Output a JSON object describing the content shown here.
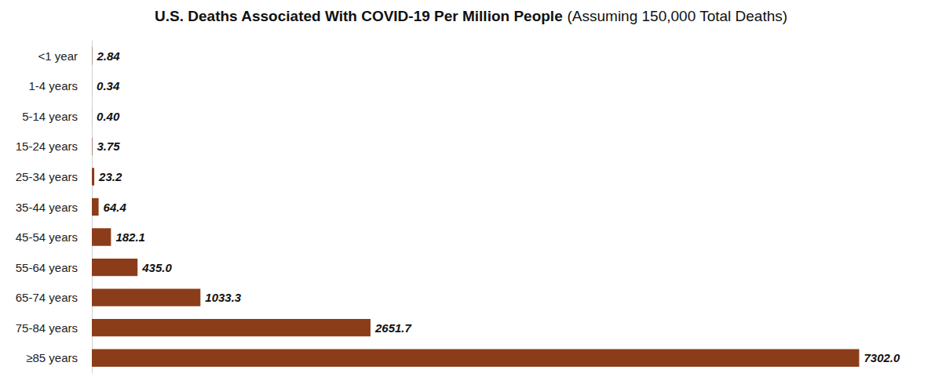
{
  "chart_data": {
    "type": "bar",
    "title": "U.S. Deaths Associated With COVID-19 Per Million People",
    "subtitle": "(Assuming 150,000 Total Deaths)",
    "orientation": "horizontal",
    "categories": [
      "<1 year",
      "1-4 years",
      "5-14 years",
      "15-24 years",
      "25-34 years",
      "35-44 years",
      "45-54 years",
      "55-64 years",
      "65-74 years",
      "75-84 years",
      "≥85 years"
    ],
    "values": [
      2.84,
      0.34,
      0.4,
      3.75,
      23.2,
      64.4,
      182.1,
      435.0,
      1033.3,
      2651.7,
      7302.0
    ],
    "value_labels": [
      "2.84",
      "0.34",
      "0.40",
      "3.75",
      "23.2",
      "64.4",
      "182.1",
      "435.0",
      "1033.3",
      "2651.7",
      "7302.0"
    ],
    "color": "#8b3d1a",
    "data_labels": true,
    "xlim": [
      0,
      7500
    ],
    "xticks": [
      0,
      2500,
      5000,
      7500
    ],
    "tick_labels": "y",
    "grid": false
  }
}
